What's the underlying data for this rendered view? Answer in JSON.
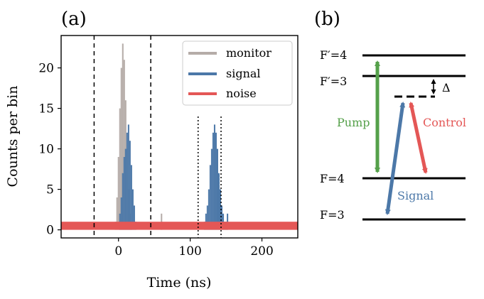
{
  "panels": {
    "a": "(a)",
    "b": "(b)"
  },
  "colors": {
    "monitor": "#b5aca8",
    "signal": "#4c78a8",
    "noise": "#e45756",
    "pump": "#55a04a",
    "axis": "#000000"
  },
  "chart_data": {
    "type": "histogram",
    "xlabel": "Time (ns)",
    "ylabel": "Counts per bin",
    "xlim": [
      -80,
      250
    ],
    "ylim": [
      -1,
      24
    ],
    "xticks": [
      0,
      100,
      200
    ],
    "yticks": [
      0,
      5,
      10,
      15,
      20
    ],
    "xtick_labels": [
      "0",
      "100",
      "200"
    ],
    "ytick_labels": [
      "0",
      "5",
      "10",
      "15",
      "20"
    ],
    "legend": {
      "placement": "top-right",
      "entries": [
        "monitor",
        "signal",
        "noise"
      ]
    },
    "dashed_lines_x": [
      -34,
      45
    ],
    "dotted_lines_x": [
      111,
      143
    ],
    "series": [
      {
        "name": "monitor",
        "x": [
          -4,
          -2,
          0,
          2,
          4,
          6,
          8,
          10,
          12,
          14,
          16,
          18,
          20,
          60
        ],
        "y": [
          1,
          4,
          9,
          15,
          20,
          23,
          21,
          16,
          10,
          5,
          2,
          1,
          0,
          2
        ]
      },
      {
        "name": "signal",
        "x": [
          2,
          4,
          6,
          8,
          10,
          12,
          14,
          16,
          18,
          20,
          22,
          24,
          120,
          122,
          124,
          126,
          128,
          130,
          132,
          134,
          136,
          138,
          140,
          142,
          144,
          146,
          148,
          150,
          152
        ],
        "y": [
          2,
          4,
          7,
          9,
          10,
          12,
          13,
          11,
          8,
          5,
          3,
          1,
          1,
          2,
          3,
          5,
          8,
          10,
          12,
          13,
          12,
          10,
          7,
          5,
          3,
          2,
          1,
          1,
          2
        ]
      },
      {
        "name": "noise",
        "x": [
          -80,
          250
        ],
        "y": [
          1,
          1
        ]
      }
    ]
  },
  "diagram": {
    "levels": [
      {
        "label": "F′=4",
        "key": "Fp4"
      },
      {
        "label": "F′=3",
        "key": "Fp3"
      },
      {
        "label": "F=4",
        "key": "F4"
      },
      {
        "label": "F=3",
        "key": "F3"
      }
    ],
    "delta": "Δ",
    "arrows": {
      "pump": "Pump",
      "control": "Control",
      "signal": "Signal"
    }
  }
}
